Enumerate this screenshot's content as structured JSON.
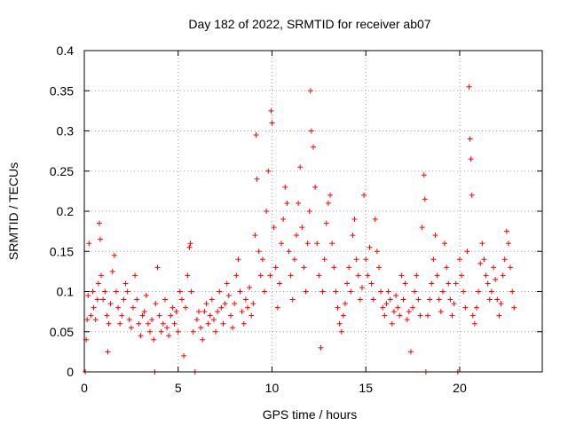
{
  "chart_data": {
    "type": "scatter",
    "title": "Day 182 of 2022, SRMTID for receiver ab07",
    "xlabel": "GPS time / hours",
    "ylabel": "SRMTID / TECUs",
    "xlim": [
      0,
      24.4
    ],
    "ylim": [
      0,
      0.4
    ],
    "x_ticks": [
      0,
      5,
      10,
      15,
      20
    ],
    "y_ticks": [
      0,
      0.05,
      0.1,
      0.15,
      0.2,
      0.25,
      0.3,
      0.35,
      0.4
    ],
    "x_tick_labels": [
      "0",
      "5",
      "10",
      "15",
      "20"
    ],
    "y_tick_labels": [
      "0",
      "0.05",
      "0.1",
      "0.15",
      "0.2",
      "0.25",
      "0.3",
      "0.35",
      "0.4"
    ],
    "grid": true,
    "marker": "+",
    "color": "#ff0000",
    "series": [
      {
        "name": "ab07",
        "points": [
          [
            0.05,
            0.0
          ],
          [
            0.1,
            0.04
          ],
          [
            0.15,
            0.065
          ],
          [
            0.2,
            0.095
          ],
          [
            0.25,
            0.16
          ],
          [
            0.35,
            0.07
          ],
          [
            0.45,
            0.1
          ],
          [
            0.5,
            0.08
          ],
          [
            0.6,
            0.065
          ],
          [
            0.7,
            0.09
          ],
          [
            0.75,
            0.11
          ],
          [
            0.8,
            0.185
          ],
          [
            0.85,
            0.165
          ],
          [
            0.9,
            0.12
          ],
          [
            1.0,
            0.09
          ],
          [
            1.1,
            0.1
          ],
          [
            1.2,
            0.07
          ],
          [
            1.25,
            0.025
          ],
          [
            1.3,
            0.06
          ],
          [
            1.4,
            0.085
          ],
          [
            1.5,
            0.125
          ],
          [
            1.6,
            0.145
          ],
          [
            1.7,
            0.1
          ],
          [
            1.8,
            0.08
          ],
          [
            1.9,
            0.06
          ],
          [
            2.0,
            0.07
          ],
          [
            2.1,
            0.09
          ],
          [
            2.2,
            0.11
          ],
          [
            2.3,
            0.1
          ],
          [
            2.4,
            0.065
          ],
          [
            2.5,
            0.055
          ],
          [
            2.6,
            0.08
          ],
          [
            2.7,
            0.12
          ],
          [
            2.8,
            0.09
          ],
          [
            2.9,
            0.06
          ],
          [
            3.0,
            0.045
          ],
          [
            3.1,
            0.07
          ],
          [
            3.2,
            0.075
          ],
          [
            3.3,
            0.095
          ],
          [
            3.4,
            0.06
          ],
          [
            3.5,
            0.05
          ],
          [
            3.6,
            0.065
          ],
          [
            3.7,
            0.04
          ],
          [
            3.75,
            0.0
          ],
          [
            3.8,
            0.085
          ],
          [
            3.9,
            0.13
          ],
          [
            4.0,
            0.07
          ],
          [
            4.1,
            0.05
          ],
          [
            4.2,
            0.06
          ],
          [
            4.3,
            0.09
          ],
          [
            4.4,
            0.055
          ],
          [
            4.5,
            0.045
          ],
          [
            4.6,
            0.07
          ],
          [
            4.7,
            0.08
          ],
          [
            4.8,
            0.06
          ],
          [
            4.9,
            0.075
          ],
          [
            5.0,
            0.05
          ],
          [
            5.1,
            0.1
          ],
          [
            5.2,
            0.09
          ],
          [
            5.3,
            0.02
          ],
          [
            5.4,
            0.08
          ],
          [
            5.5,
            0.12
          ],
          [
            5.6,
            0.155
          ],
          [
            5.65,
            0.16
          ],
          [
            5.7,
            0.1
          ],
          [
            5.8,
            0.05
          ],
          [
            5.9,
            0.0
          ],
          [
            6.0,
            0.065
          ],
          [
            6.1,
            0.075
          ],
          [
            6.2,
            0.055
          ],
          [
            6.3,
            0.04
          ],
          [
            6.4,
            0.075
          ],
          [
            6.5,
            0.085
          ],
          [
            6.6,
            0.06
          ],
          [
            6.7,
            0.07
          ],
          [
            6.8,
            0.09
          ],
          [
            6.9,
            0.065
          ],
          [
            7.0,
            0.05
          ],
          [
            7.1,
            0.075
          ],
          [
            7.2,
            0.1
          ],
          [
            7.3,
            0.08
          ],
          [
            7.4,
            0.06
          ],
          [
            7.5,
            0.085
          ],
          [
            7.6,
            0.11
          ],
          [
            7.7,
            0.095
          ],
          [
            7.8,
            0.07
          ],
          [
            7.9,
            0.055
          ],
          [
            8.0,
            0.085
          ],
          [
            8.1,
            0.12
          ],
          [
            8.2,
            0.14
          ],
          [
            8.3,
            0.1
          ],
          [
            8.4,
            0.075
          ],
          [
            8.5,
            0.06
          ],
          [
            8.6,
            0.09
          ],
          [
            8.7,
            0.08
          ],
          [
            8.8,
            0.105
          ],
          [
            8.9,
            0.07
          ],
          [
            9.0,
            0.085
          ],
          [
            9.1,
            0.17
          ],
          [
            9.15,
            0.295
          ],
          [
            9.2,
            0.24
          ],
          [
            9.3,
            0.15
          ],
          [
            9.4,
            0.12
          ],
          [
            9.5,
            0.14
          ],
          [
            9.6,
            0.1
          ],
          [
            9.7,
            0.2
          ],
          [
            9.8,
            0.25
          ],
          [
            9.9,
            0.12
          ],
          [
            9.95,
            0.325
          ],
          [
            10.0,
            0.31
          ],
          [
            10.1,
            0.18
          ],
          [
            10.2,
            0.13
          ],
          [
            10.3,
            0.08
          ],
          [
            10.4,
            0.11
          ],
          [
            10.5,
            0.16
          ],
          [
            10.6,
            0.19
          ],
          [
            10.7,
            0.23
          ],
          [
            10.8,
            0.21
          ],
          [
            10.9,
            0.15
          ],
          [
            11.0,
            0.12
          ],
          [
            11.1,
            0.09
          ],
          [
            11.2,
            0.14
          ],
          [
            11.3,
            0.17
          ],
          [
            11.4,
            0.21
          ],
          [
            11.5,
            0.255
          ],
          [
            11.6,
            0.18
          ],
          [
            11.7,
            0.13
          ],
          [
            11.8,
            0.1
          ],
          [
            11.9,
            0.16
          ],
          [
            12.0,
            0.2
          ],
          [
            12.05,
            0.35
          ],
          [
            12.1,
            0.3
          ],
          [
            12.2,
            0.28
          ],
          [
            12.3,
            0.23
          ],
          [
            12.4,
            0.16
          ],
          [
            12.5,
            0.12
          ],
          [
            12.6,
            0.03
          ],
          [
            12.7,
            0.1
          ],
          [
            12.8,
            0.14
          ],
          [
            12.9,
            0.185
          ],
          [
            13.0,
            0.21
          ],
          [
            13.1,
            0.22
          ],
          [
            13.2,
            0.16
          ],
          [
            13.3,
            0.13
          ],
          [
            13.4,
            0.1
          ],
          [
            13.5,
            0.08
          ],
          [
            13.6,
            0.06
          ],
          [
            13.7,
            0.05
          ],
          [
            13.8,
            0.07
          ],
          [
            13.9,
            0.085
          ],
          [
            14.0,
            0.11
          ],
          [
            14.1,
            0.13
          ],
          [
            14.2,
            0.1
          ],
          [
            14.3,
            0.17
          ],
          [
            14.4,
            0.19
          ],
          [
            14.5,
            0.14
          ],
          [
            14.6,
            0.12
          ],
          [
            14.7,
            0.09
          ],
          [
            14.8,
            0.105
          ],
          [
            14.9,
            0.22
          ],
          [
            15.0,
            0.14
          ],
          [
            15.1,
            0.12
          ],
          [
            15.2,
            0.155
          ],
          [
            15.3,
            0.11
          ],
          [
            15.4,
            0.09
          ],
          [
            15.5,
            0.19
          ],
          [
            15.6,
            0.15
          ],
          [
            15.7,
            0.13
          ],
          [
            15.8,
            0.1
          ],
          [
            15.9,
            0.08
          ],
          [
            16.0,
            0.07
          ],
          [
            16.1,
            0.085
          ],
          [
            16.2,
            0.1
          ],
          [
            16.3,
            0.09
          ],
          [
            16.4,
            0.06
          ],
          [
            16.5,
            0.075
          ],
          [
            16.6,
            0.095
          ],
          [
            16.7,
            0.08
          ],
          [
            16.8,
            0.07
          ],
          [
            16.9,
            0.12
          ],
          [
            17.0,
            0.09
          ],
          [
            17.1,
            0.11
          ],
          [
            17.2,
            0.065
          ],
          [
            17.3,
            0.075
          ],
          [
            17.4,
            0.025
          ],
          [
            17.5,
            0.08
          ],
          [
            17.6,
            0.1
          ],
          [
            17.7,
            0.12
          ],
          [
            17.8,
            0.09
          ],
          [
            17.9,
            0.07
          ],
          [
            18.0,
            0.18
          ],
          [
            18.1,
            0.245
          ],
          [
            18.15,
            0.215
          ],
          [
            18.2,
            0.0
          ],
          [
            18.3,
            0.07
          ],
          [
            18.4,
            0.09
          ],
          [
            18.5,
            0.11
          ],
          [
            18.6,
            0.14
          ],
          [
            18.7,
            0.17
          ],
          [
            18.8,
            0.12
          ],
          [
            18.9,
            0.09
          ],
          [
            19.0,
            0.075
          ],
          [
            19.1,
            0.1
          ],
          [
            19.2,
            0.16
          ],
          [
            19.3,
            0.13
          ],
          [
            19.4,
            0.11
          ],
          [
            19.5,
            0.09
          ],
          [
            19.6,
            0.07
          ],
          [
            19.7,
            0.085
          ],
          [
            19.8,
            0.11
          ],
          [
            19.9,
            0.0
          ],
          [
            20.0,
            0.14
          ],
          [
            20.1,
            0.12
          ],
          [
            20.2,
            0.1
          ],
          [
            20.3,
            0.08
          ],
          [
            20.4,
            0.15
          ],
          [
            20.5,
            0.355
          ],
          [
            20.55,
            0.29
          ],
          [
            20.6,
            0.265
          ],
          [
            20.65,
            0.22
          ],
          [
            20.7,
            0.07
          ],
          [
            20.8,
            0.06
          ],
          [
            20.9,
            0.08
          ],
          [
            21.0,
            0.1
          ],
          [
            21.1,
            0.135
          ],
          [
            21.2,
            0.16
          ],
          [
            21.3,
            0.14
          ],
          [
            21.4,
            0.12
          ],
          [
            21.5,
            0.11
          ],
          [
            21.6,
            0.09
          ],
          [
            21.7,
            0.1
          ],
          [
            21.8,
            0.13
          ],
          [
            21.9,
            0.115
          ],
          [
            22.0,
            0.09
          ],
          [
            22.1,
            0.07
          ],
          [
            22.2,
            0.085
          ],
          [
            22.3,
            0.12
          ],
          [
            22.4,
            0.14
          ],
          [
            22.5,
            0.175
          ],
          [
            22.6,
            0.16
          ],
          [
            22.7,
            0.13
          ],
          [
            22.8,
            0.1
          ],
          [
            22.9,
            0.08
          ]
        ]
      }
    ]
  }
}
